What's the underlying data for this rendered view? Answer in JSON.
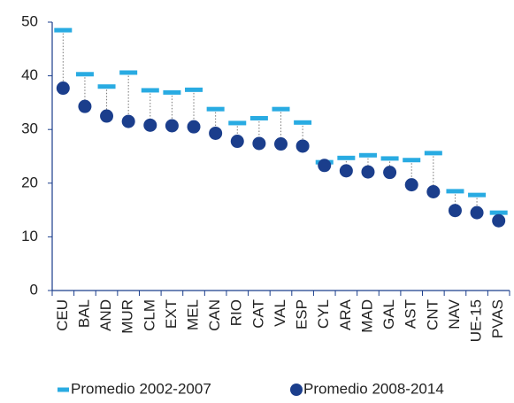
{
  "chart_data": {
    "type": "dumbbell",
    "categories": [
      "CEU",
      "BAL",
      "AND",
      "MUR",
      "CLM",
      "EXT",
      "MEL",
      "CAN",
      "RIO",
      "CAT",
      "VAL",
      "ESP",
      "CYL",
      "ARA",
      "MAD",
      "GAL",
      "AST",
      "CNT",
      "NAV",
      "UE-15",
      "PVAS"
    ],
    "series": [
      {
        "name": "Promedio 2002-2007",
        "color": "#29abe2",
        "marker": "dash",
        "values": [
          48.5,
          40.3,
          38,
          40.6,
          37.3,
          36.9,
          37.4,
          33.8,
          31.2,
          32.1,
          33.8,
          31.3,
          23.9,
          24.7,
          25.2,
          24.6,
          24.3,
          25.6,
          18.5,
          17.8,
          14.5
        ]
      },
      {
        "name": "Promedio 2008-2014",
        "color": "#1b3e8c",
        "marker": "circle",
        "values": [
          37.7,
          34.3,
          32.5,
          31.5,
          30.8,
          30.7,
          30.5,
          29.3,
          27.8,
          27.4,
          27.3,
          26.9,
          23.3,
          22.3,
          22.1,
          22,
          19.7,
          18.4,
          14.9,
          14.5,
          13
        ]
      }
    ],
    "ylim": [
      0,
      50
    ],
    "yticks": [
      0,
      10,
      20,
      30,
      40,
      50
    ],
    "grid": false,
    "legend": "bottom"
  }
}
